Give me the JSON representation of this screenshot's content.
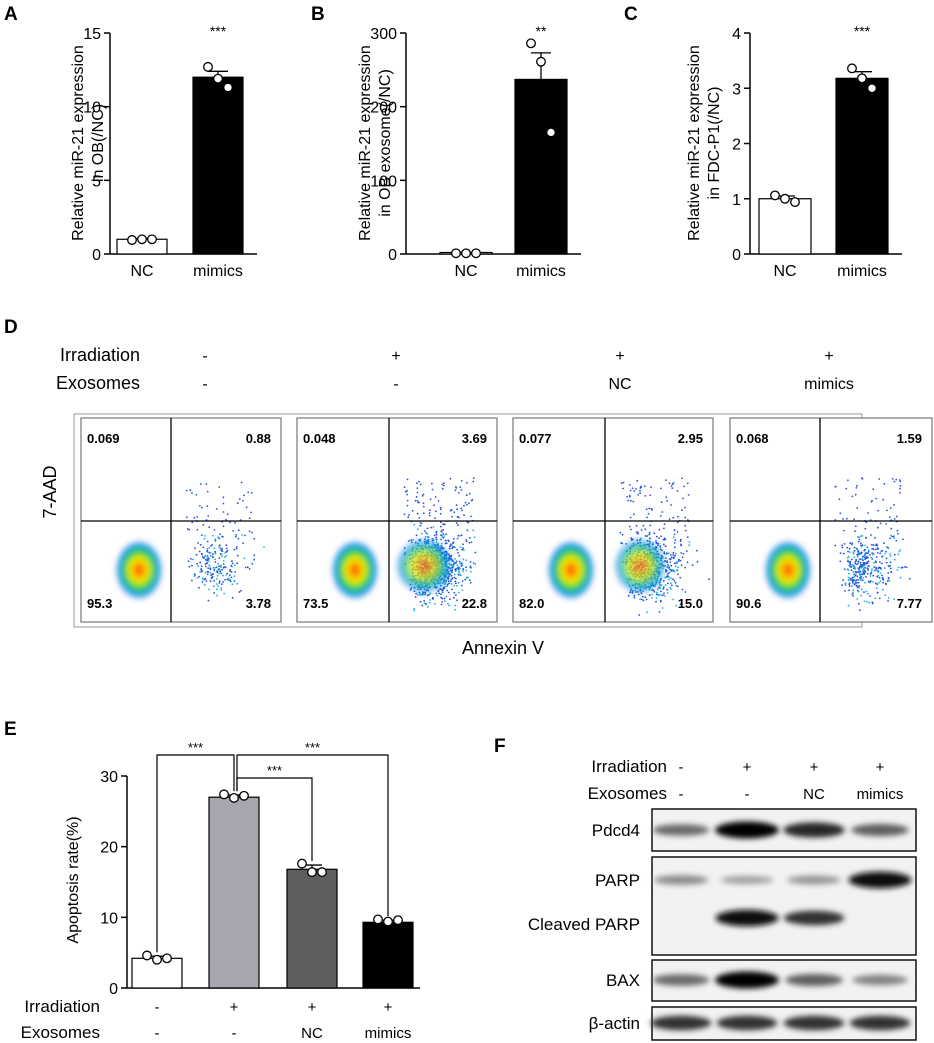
{
  "panel_letters": {
    "a": "A",
    "b": "B",
    "c": "C",
    "d": "D",
    "e": "E",
    "f": "F"
  },
  "colors": {
    "nc_bar": "#ffffff",
    "mimics_bar": "#000000",
    "e_irr_bar": "#a6a6ae",
    "e_nc_bar": "#5e5e5e",
    "e_mimics_bar": "#000000"
  },
  "chart_data": [
    {
      "id": "A",
      "type": "bar",
      "ylabel": "Relative miR-21 expression\nin OB(/NC)",
      "categories": [
        "NC",
        "mimics"
      ],
      "values": [
        1.0,
        12.0
      ],
      "errors": [
        0.05,
        0.4
      ],
      "points": [
        [
          0.95,
          1.0,
          1.0
        ],
        [
          12.7,
          11.9,
          11.3
        ]
      ],
      "ylim": [
        0,
        15
      ],
      "yticks": [
        "0",
        "5",
        "10",
        "15"
      ],
      "significance": "***"
    },
    {
      "id": "B",
      "type": "bar",
      "ylabel": "Relative miR-21 expression\nin OB exosome(/NC)",
      "categories": [
        "NC",
        "mimics"
      ],
      "values": [
        1,
        237
      ],
      "errors": [
        1,
        36
      ],
      "points": [
        [
          1,
          1,
          1
        ],
        [
          286,
          261,
          165
        ]
      ],
      "ylim": [
        0,
        300
      ],
      "yticks": [
        "0",
        "100",
        "200",
        "300"
      ],
      "significance": "**"
    },
    {
      "id": "C",
      "type": "bar",
      "ylabel": "Relative miR-21 expression\nin FDC-P1(/NC)",
      "categories": [
        "NC",
        "mimics"
      ],
      "values": [
        1.0,
        3.18
      ],
      "errors": [
        0.05,
        0.12
      ],
      "points": [
        [
          1.06,
          1.0,
          0.94
        ],
        [
          3.36,
          3.18,
          3.0
        ]
      ],
      "ylim": [
        0,
        4
      ],
      "yticks": [
        "0",
        "1",
        "2",
        "3",
        "4"
      ],
      "significance": "***"
    },
    {
      "id": "D",
      "type": "scatter",
      "xlabel": "Annexin V",
      "ylabel": "7-AAD",
      "row_labels": [
        "Irradiation",
        "Exosomes"
      ],
      "conditions": [
        {
          "irradiation": "-",
          "exosomes": "-",
          "quadrants": [
            "0.069",
            "0.88",
            "95.3",
            "3.78"
          ]
        },
        {
          "irradiation": "+",
          "exosomes": "-",
          "quadrants": [
            "0.048",
            "3.69",
            "73.5",
            "22.8"
          ]
        },
        {
          "irradiation": "+",
          "exosomes": "NC",
          "quadrants": [
            "0.077",
            "2.95",
            "82.0",
            "15.0"
          ]
        },
        {
          "irradiation": "+",
          "exosomes": "mimics",
          "quadrants": [
            "0.068",
            "1.59",
            "90.6",
            "7.77"
          ]
        }
      ]
    },
    {
      "id": "E",
      "type": "bar",
      "ylabel": "Apoptosis rate(%)",
      "row_labels": [
        "Irradiation",
        "Exosomes"
      ],
      "irradiation": [
        "-",
        "+",
        "+",
        "+"
      ],
      "exosomes": [
        "-",
        "-",
        "NC",
        "mimics"
      ],
      "values": [
        4.2,
        27.0,
        16.8,
        9.3
      ],
      "errors": [
        0.3,
        0.3,
        0.6,
        0.3
      ],
      "points": [
        [
          4.6,
          4.0,
          4.2
        ],
        [
          27.4,
          26.9,
          27.2
        ],
        [
          17.6,
          16.4,
          16.4
        ],
        [
          9.7,
          9.4,
          9.6
        ]
      ],
      "ylim": [
        0,
        30
      ],
      "yticks": [
        "0",
        "10",
        "20",
        "30"
      ],
      "comparisons": [
        {
          "from": 0,
          "to": 1,
          "label": "***"
        },
        {
          "from": 1,
          "to": 2,
          "label": "***"
        },
        {
          "from": 1,
          "to": 3,
          "label": "***"
        }
      ]
    }
  ],
  "blot": {
    "row_labels": [
      "Irradiation",
      "Exosomes"
    ],
    "irradiation": [
      "-",
      "+",
      "+",
      "+"
    ],
    "exosomes": [
      "-",
      "-",
      "NC",
      "mimics"
    ],
    "bands": {
      "pdcd4": {
        "label": "Pdcd4",
        "intensity": [
          0.55,
          1.0,
          0.85,
          0.6
        ]
      },
      "parp": {
        "label": "PARP",
        "intensity": [
          0.4,
          0.3,
          0.35,
          0.95
        ]
      },
      "cleaved_parp": {
        "label": "Cleaved PARP",
        "intensity": [
          0.05,
          0.95,
          0.8,
          0.05
        ]
      },
      "bax": {
        "label": "BAX",
        "intensity": [
          0.55,
          1.0,
          0.6,
          0.45
        ]
      },
      "actin": {
        "label": "β-actin",
        "intensity": [
          0.8,
          0.8,
          0.8,
          0.8
        ]
      }
    }
  }
}
